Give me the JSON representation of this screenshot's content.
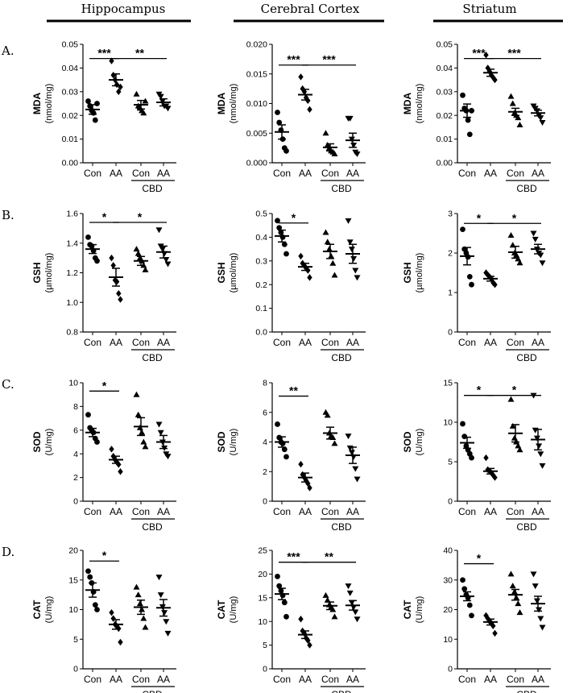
{
  "columns": [
    "Hippocampus",
    "Cerebral Cortex",
    "Striatum"
  ],
  "row_labels": [
    "A.",
    "B.",
    "C.",
    "D."
  ],
  "group_label": "CBD",
  "chart_data": [
    {
      "type": "scatter",
      "ylabel": "MDA",
      "yunit": "(nmol/mg)",
      "ylim": [
        0,
        0.05
      ],
      "yticks": [
        0,
        0.01,
        0.02,
        0.03,
        0.04,
        0.05
      ],
      "ytick_labels": [
        "0.00",
        "0.01",
        "0.02",
        "0.03",
        "0.04",
        "0.05"
      ],
      "categories": [
        "Con",
        "AA",
        "Con",
        "AA"
      ],
      "means": [
        0.0225,
        0.035,
        0.0245,
        0.0255
      ],
      "sems": [
        0.002,
        0.0025,
        0.0018,
        0.0015
      ],
      "points": [
        [
          0.026,
          0.024,
          0.022,
          0.021,
          0.018,
          0.025
        ],
        [
          0.043,
          0.037,
          0.035,
          0.033,
          0.03,
          0.032
        ],
        [
          0.029,
          0.024,
          0.023,
          0.022,
          0.021,
          0.026
        ],
        [
          0.029,
          0.028,
          0.026,
          0.024,
          0.024,
          0.023
        ]
      ],
      "sig": [
        {
          "from": 0,
          "to": 1,
          "label": "***",
          "y": 0.044
        },
        {
          "from": 1,
          "to": 3,
          "label": "**",
          "y": 0.044
        }
      ]
    },
    {
      "type": "scatter",
      "ylabel": "MDA",
      "yunit": "(nmol/mg)",
      "ylim": [
        0,
        0.02
      ],
      "yticks": [
        0,
        0.005,
        0.01,
        0.015,
        0.02
      ],
      "ytick_labels": [
        "0.000",
        "0.005",
        "0.010",
        "0.015",
        "0.020"
      ],
      "categories": [
        "Con",
        "AA",
        "Con",
        "AA"
      ],
      "means": [
        0.0052,
        0.0115,
        0.0026,
        0.0038
      ],
      "sems": [
        0.0012,
        0.0009,
        0.0006,
        0.0012
      ],
      "points": [
        [
          0.0085,
          0.0068,
          0.0055,
          0.004,
          0.0025,
          0.002
        ],
        [
          0.0145,
          0.0125,
          0.012,
          0.011,
          0.0105,
          0.009
        ],
        [
          0.005,
          0.003,
          0.0025,
          0.002,
          0.0018,
          0.0015
        ],
        [
          0.0075,
          0.0075,
          0.004,
          0.003,
          0.0018,
          0.0015
        ]
      ],
      "sig": [
        {
          "from": 0,
          "to": 1,
          "label": "***",
          "y": 0.0165
        },
        {
          "from": 1,
          "to": 3,
          "label": "***",
          "y": 0.0165
        }
      ]
    },
    {
      "type": "scatter",
      "ylabel": "MDA",
      "yunit": "(nmol/mg)",
      "ylim": [
        0,
        0.05
      ],
      "yticks": [
        0,
        0.01,
        0.02,
        0.03,
        0.04,
        0.05
      ],
      "ytick_labels": [
        "0.00",
        "0.01",
        "0.02",
        "0.03",
        "0.04",
        "0.05"
      ],
      "categories": [
        "Con",
        "AA",
        "Con",
        "AA"
      ],
      "means": [
        0.022,
        0.038,
        0.0215,
        0.021
      ],
      "sems": [
        0.0028,
        0.0015,
        0.0015,
        0.0012
      ],
      "points": [
        [
          0.0285,
          0.023,
          0.022,
          0.018,
          0.012,
          0.022
        ],
        [
          0.0455,
          0.04,
          0.0385,
          0.037,
          0.036,
          0.035
        ],
        [
          0.028,
          0.025,
          0.021,
          0.02,
          0.019,
          0.016
        ],
        [
          0.024,
          0.023,
          0.022,
          0.02,
          0.019,
          0.017
        ]
      ],
      "sig": [
        {
          "from": 0,
          "to": 1,
          "label": "***",
          "y": 0.044
        },
        {
          "from": 1,
          "to": 3,
          "label": "***",
          "y": 0.044
        }
      ]
    },
    {
      "type": "scatter",
      "ylabel": "GSH",
      "yunit": "(µmol/mg)",
      "ylim": [
        0.8,
        1.6
      ],
      "yticks": [
        0.8,
        1.0,
        1.2,
        1.4,
        1.6
      ],
      "ytick_labels": [
        "0.8",
        "1.0",
        "1.2",
        "1.4",
        "1.6"
      ],
      "categories": [
        "Con",
        "AA",
        "Con",
        "AA"
      ],
      "means": [
        1.36,
        1.17,
        1.28,
        1.34
      ],
      "sems": [
        0.03,
        0.06,
        0.03,
        0.04
      ],
      "points": [
        [
          1.44,
          1.39,
          1.38,
          1.35,
          1.3,
          1.28
        ],
        [
          1.3,
          1.25,
          1.15,
          1.14,
          1.06,
          1.02
        ],
        [
          1.36,
          1.33,
          1.3,
          1.28,
          1.25,
          1.22
        ],
        [
          1.49,
          1.38,
          1.36,
          1.33,
          1.29,
          1.26
        ]
      ],
      "sig": [
        {
          "from": 0,
          "to": 1,
          "label": "*",
          "y": 1.54
        },
        {
          "from": 1,
          "to": 3,
          "label": "*",
          "y": 1.54
        }
      ]
    },
    {
      "type": "scatter",
      "ylabel": "GSH",
      "yunit": "(µmol/mg)",
      "ylim": [
        0,
        0.5
      ],
      "yticks": [
        0,
        0.1,
        0.2,
        0.3,
        0.4,
        0.5
      ],
      "ytick_labels": [
        "0.0",
        "0.1",
        "0.2",
        "0.3",
        "0.4",
        "0.5"
      ],
      "categories": [
        "Con",
        "AA",
        "Con",
        "AA"
      ],
      "means": [
        0.405,
        0.275,
        0.34,
        0.33
      ],
      "sems": [
        0.025,
        0.015,
        0.03,
        0.04
      ],
      "points": [
        [
          0.47,
          0.44,
          0.42,
          0.4,
          0.37,
          0.33
        ],
        [
          0.32,
          0.29,
          0.28,
          0.27,
          0.26,
          0.23
        ],
        [
          0.42,
          0.38,
          0.35,
          0.32,
          0.29,
          0.24
        ],
        [
          0.47,
          0.38,
          0.35,
          0.31,
          0.26,
          0.23
        ]
      ],
      "sig": [
        {
          "from": 0,
          "to": 1,
          "label": "*",
          "y": 0.46
        }
      ]
    },
    {
      "type": "scatter",
      "ylabel": "GSH",
      "yunit": "(µmol/mg)",
      "ylim": [
        0,
        3
      ],
      "yticks": [
        0,
        1,
        2,
        3
      ],
      "ytick_labels": [
        "0",
        "1",
        "2",
        "3"
      ],
      "categories": [
        "Con",
        "AA",
        "Con",
        "AA"
      ],
      "means": [
        1.92,
        1.35,
        2.02,
        2.1
      ],
      "sems": [
        0.22,
        0.06,
        0.15,
        0.12
      ],
      "points": [
        [
          2.6,
          2.1,
          2.0,
          1.9,
          1.4,
          1.2
        ],
        [
          1.5,
          1.45,
          1.4,
          1.35,
          1.25,
          1.2
        ],
        [
          2.45,
          2.2,
          2.0,
          1.95,
          1.85,
          1.75
        ],
        [
          2.5,
          2.35,
          2.1,
          2.0,
          1.95,
          1.75
        ]
      ],
      "sig": [
        {
          "from": 0,
          "to": 1,
          "label": "*",
          "y": 2.75
        },
        {
          "from": 1,
          "to": 3,
          "label": "*",
          "y": 2.75
        }
      ]
    },
    {
      "type": "scatter",
      "ylabel": "SOD",
      "yunit": "(U/mg)",
      "ylim": [
        0,
        10
      ],
      "yticks": [
        0,
        2,
        4,
        6,
        8,
        10
      ],
      "ytick_labels": [
        "0",
        "2",
        "4",
        "6",
        "8",
        "10"
      ],
      "categories": [
        "Con",
        "AA",
        "Con",
        "AA"
      ],
      "means": [
        5.8,
        3.5,
        6.3,
        5.0
      ],
      "sems": [
        0.35,
        0.3,
        0.75,
        0.55
      ],
      "points": [
        [
          7.3,
          6.2,
          6.0,
          5.8,
          5.3,
          5.0
        ],
        [
          4.4,
          3.8,
          3.5,
          3.3,
          3.1,
          2.5
        ],
        [
          9.0,
          7.3,
          6.2,
          5.8,
          5.0,
          4.6
        ],
        [
          6.5,
          5.8,
          5.0,
          4.5,
          4.0,
          3.8
        ]
      ],
      "sig": [
        {
          "from": 0,
          "to": 1,
          "label": "*",
          "y": 9.3
        }
      ]
    },
    {
      "type": "scatter",
      "ylabel": "SOD",
      "yunit": "(U/mg)",
      "ylim": [
        0,
        8
      ],
      "yticks": [
        0,
        2,
        4,
        6,
        8
      ],
      "ytick_labels": [
        "0",
        "2",
        "4",
        "6",
        "8"
      ],
      "categories": [
        "Con",
        "AA",
        "Con",
        "AA"
      ],
      "means": [
        4.0,
        1.6,
        4.6,
        3.1
      ],
      "sems": [
        0.35,
        0.3,
        0.4,
        0.55
      ],
      "points": [
        [
          5.2,
          4.3,
          4.0,
          3.9,
          3.5,
          3.0
        ],
        [
          2.5,
          1.8,
          1.6,
          1.4,
          1.2,
          0.9
        ],
        [
          6.0,
          5.8,
          4.6,
          4.4,
          4.3,
          3.9
        ],
        [
          4.4,
          3.6,
          3.3,
          3.0,
          2.2,
          1.5
        ]
      ],
      "sig": [
        {
          "from": 0,
          "to": 1,
          "label": "**",
          "y": 7.1
        }
      ]
    },
    {
      "type": "scatter",
      "ylabel": "SOD",
      "yunit": "(U/mg)",
      "ylim": [
        0,
        15
      ],
      "yticks": [
        0,
        5,
        10,
        15
      ],
      "ytick_labels": [
        "0",
        "5",
        "10",
        "15"
      ],
      "categories": [
        "Con",
        "AA",
        "Con",
        "AA"
      ],
      "means": [
        7.4,
        3.8,
        8.6,
        7.8
      ],
      "sems": [
        0.7,
        0.35,
        1.1,
        1.3
      ],
      "points": [
        [
          9.8,
          8.2,
          7.0,
          6.5,
          6.0,
          5.5
        ],
        [
          5.5,
          4.0,
          3.8,
          3.6,
          3.3,
          3.0
        ],
        [
          12.9,
          9.5,
          8.0,
          7.5,
          7.0,
          6.5
        ],
        [
          13.4,
          9.0,
          8.0,
          7.0,
          6.0,
          4.5
        ]
      ],
      "sig": [
        {
          "from": 0,
          "to": 1,
          "label": "*",
          "y": 13.4
        },
        {
          "from": 1,
          "to": 3,
          "label": "*",
          "y": 13.4
        }
      ]
    },
    {
      "type": "scatter",
      "ylabel": "CAT",
      "yunit": "(U/mg)",
      "ylim": [
        0,
        20
      ],
      "yticks": [
        0,
        5,
        10,
        15,
        20
      ],
      "ytick_labels": [
        "0",
        "5",
        "10",
        "15",
        "20"
      ],
      "categories": [
        "Con",
        "AA",
        "Con",
        "AA"
      ],
      "means": [
        13.3,
        7.5,
        10.4,
        10.3
      ],
      "sems": [
        1.2,
        0.8,
        1.2,
        1.4
      ],
      "points": [
        [
          16.5,
          15.5,
          14.5,
          13.0,
          10.8,
          10.0
        ],
        [
          9.5,
          8.5,
          7.5,
          7.2,
          6.8,
          4.5
        ],
        [
          13.8,
          12.5,
          11.0,
          10.0,
          8.5,
          7.0
        ],
        [
          15.5,
          12.5,
          10.5,
          9.5,
          8.0,
          6.0
        ]
      ],
      "sig": [
        {
          "from": 0,
          "to": 1,
          "label": "*",
          "y": 18.2
        }
      ]
    },
    {
      "type": "scatter",
      "ylabel": "CAT",
      "yunit": "(U/mg)",
      "ylim": [
        0,
        25
      ],
      "yticks": [
        0,
        5,
        10,
        15,
        20,
        25
      ],
      "ytick_labels": [
        "0",
        "5",
        "10",
        "15",
        "20",
        "25"
      ],
      "categories": [
        "Con",
        "AA",
        "Con",
        "AA"
      ],
      "means": [
        15.8,
        7.2,
        13.3,
        13.4
      ],
      "sems": [
        1.2,
        0.8,
        0.8,
        1.0
      ],
      "points": [
        [
          19.5,
          17.5,
          16.5,
          15.5,
          14.0,
          11.0
        ],
        [
          10.5,
          8.0,
          7.5,
          6.5,
          6.0,
          5.0
        ],
        [
          15.5,
          14.5,
          13.5,
          13.0,
          12.5,
          11.0
        ],
        [
          17.5,
          16.0,
          14.0,
          13.0,
          12.0,
          10.5
        ]
      ],
      "sig": [
        {
          "from": 0,
          "to": 1,
          "label": "***",
          "y": 22.5
        },
        {
          "from": 1,
          "to": 3,
          "label": "**",
          "y": 22.5
        }
      ]
    },
    {
      "type": "scatter",
      "ylabel": "CAT",
      "yunit": "(U/mg)",
      "ylim": [
        0,
        40
      ],
      "yticks": [
        0,
        10,
        20,
        30,
        40
      ],
      "ytick_labels": [
        "0",
        "10",
        "20",
        "30",
        "40"
      ],
      "categories": [
        "Con",
        "AA",
        "Con",
        "AA"
      ],
      "means": [
        24.5,
        15.8,
        25.0,
        22.0
      ],
      "sems": [
        1.5,
        1.0,
        1.8,
        2.5
      ],
      "points": [
        [
          30.0,
          27.0,
          25.0,
          24.0,
          21.5,
          18.0
        ],
        [
          18.0,
          17.0,
          16.0,
          15.5,
          14.5,
          12.0
        ],
        [
          32.0,
          28.0,
          26.0,
          24.0,
          22.0,
          19.0
        ],
        [
          32.0,
          28.0,
          23.0,
          20.0,
          17.0,
          14.0
        ]
      ],
      "sig": [
        {
          "from": 0,
          "to": 1,
          "label": "*",
          "y": 35.5
        }
      ]
    }
  ]
}
